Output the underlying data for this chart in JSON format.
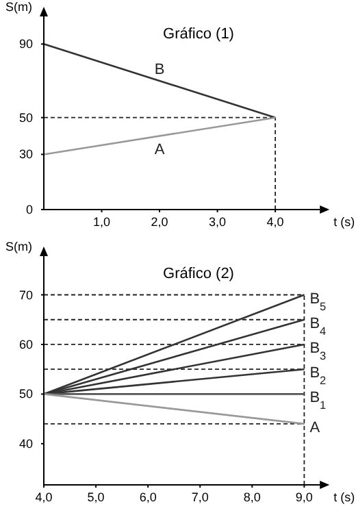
{
  "chart_data": [
    {
      "type": "line",
      "title": "Gráfico (1)",
      "xlabel": "t (s)",
      "ylabel": "S(m)",
      "x": [
        0,
        4
      ],
      "series": [
        {
          "name": "B",
          "color": "#333333",
          "values": [
            90,
            50
          ]
        },
        {
          "name": "A",
          "color": "#999999",
          "values": [
            30,
            50
          ]
        }
      ],
      "xlim": [
        0,
        4.77
      ],
      "ylim": [
        0,
        105
      ],
      "xticks": [
        {
          "value": 1,
          "label": "1,0"
        },
        {
          "value": 2,
          "label": "2,0"
        },
        {
          "value": 3,
          "label": "3,0"
        },
        {
          "value": 4,
          "label": "4,0"
        }
      ],
      "yticks": [
        0,
        30,
        50,
        90
      ],
      "ref_lines": [
        {
          "axis": "y",
          "value": 50
        },
        {
          "axis": "x",
          "value": 4
        }
      ],
      "grid": false
    },
    {
      "type": "line",
      "title": "Gráfico (2)",
      "xlabel": "t (s)",
      "ylabel": "S(m)",
      "x": [
        4,
        9
      ],
      "series": [
        {
          "name": "B$_{5}$",
          "color": "#333333",
          "values": [
            50,
            70
          ]
        },
        {
          "name": "B$_{4}$",
          "color": "#333333",
          "values": [
            50,
            65
          ]
        },
        {
          "name": "B$_{3}$",
          "color": "#333333",
          "values": [
            50,
            60
          ]
        },
        {
          "name": "B$_{2}$",
          "color": "#333333",
          "values": [
            50,
            55
          ]
        },
        {
          "name": "B$_{1}$",
          "color": "#555555",
          "values": [
            50,
            50
          ]
        },
        {
          "name": "A",
          "color": "#999999",
          "values": [
            50,
            44
          ]
        }
      ],
      "xlim": [
        4,
        9.3
      ],
      "ylim": [
        31.7,
        77.8
      ],
      "xticks": [
        {
          "value": 4,
          "label": "4,0"
        },
        {
          "value": 5,
          "label": "5,0"
        },
        {
          "value": 6,
          "label": "6,0"
        },
        {
          "value": 7,
          "label": "7,0"
        },
        {
          "value": 8,
          "label": "8,0"
        },
        {
          "value": 9,
          "label": "9,0"
        }
      ],
      "yticks": [
        40,
        50,
        60,
        70
      ],
      "ref_lines": [
        {
          "axis": "y",
          "value": 70
        },
        {
          "axis": "y",
          "value": 65
        },
        {
          "axis": "y",
          "value": 60
        },
        {
          "axis": "y",
          "value": 55
        },
        {
          "axis": "y",
          "value": 44
        },
        {
          "axis": "x",
          "value": 9
        }
      ],
      "grid": false
    }
  ]
}
